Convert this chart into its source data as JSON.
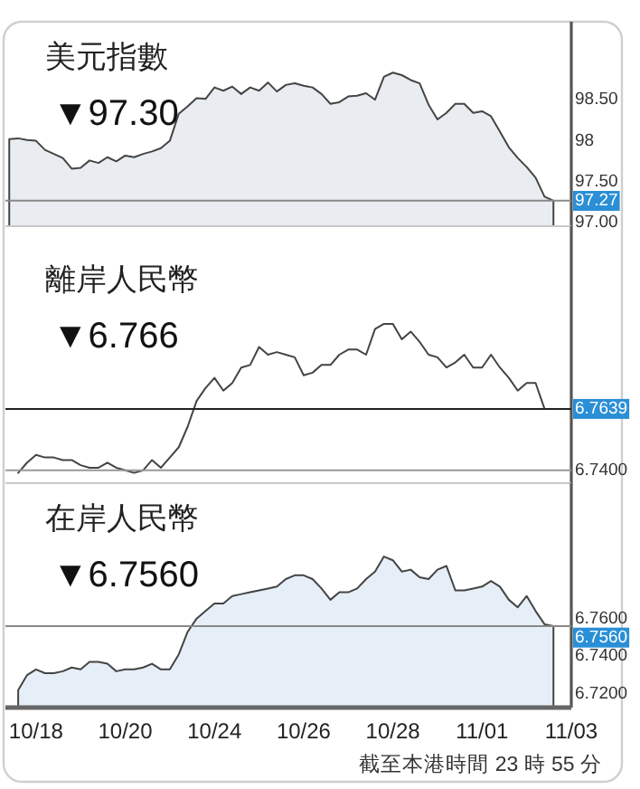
{
  "chart_data": [
    {
      "type": "area",
      "title": "美元指數",
      "subtitle": "▼97.30",
      "categories": [
        null,
        null,
        null,
        null,
        null,
        null,
        null,
        null,
        null,
        null,
        null,
        null,
        null,
        null,
        null,
        null,
        null,
        null,
        null,
        null,
        null,
        null,
        null,
        null,
        null,
        null,
        null,
        null,
        null,
        null,
        null,
        null,
        null,
        null,
        null,
        null,
        null,
        null,
        null,
        null,
        null,
        null,
        null,
        null,
        null,
        null,
        null,
        null,
        null,
        null,
        null,
        null,
        null,
        null,
        null,
        null,
        null,
        null,
        null,
        null,
        null,
        null,
        null,
        null
      ],
      "ylim": [
        96.96,
        99.45
      ],
      "yticks": [
        {
          "value": 97,
          "label": "97.00"
        },
        {
          "value": 97.5,
          "label": "97.50"
        },
        98,
        {
          "value": 98.5,
          "label": "98.50"
        }
      ],
      "ref_lines": [
        {
          "axis": "y",
          "value": 97.27,
          "label": "97.27",
          "color": "#888888"
        }
      ],
      "series": [
        {
          "color": "#e9edf2",
          "values": [
            98.02,
            98.03,
            98.01,
            98.0,
            97.89,
            97.84,
            97.79,
            97.66,
            97.67,
            97.76,
            97.73,
            97.8,
            97.75,
            97.82,
            97.8,
            97.84,
            97.87,
            97.91,
            98.0,
            98.33,
            98.42,
            98.52,
            98.51,
            98.65,
            98.61,
            98.66,
            98.57,
            98.65,
            98.61,
            98.71,
            98.6,
            98.68,
            98.7,
            98.67,
            98.65,
            98.57,
            98.45,
            98.47,
            98.54,
            98.55,
            98.58,
            98.5,
            98.78,
            98.83,
            98.8,
            98.74,
            98.7,
            98.44,
            98.26,
            98.34,
            98.45,
            98.45,
            98.34,
            98.36,
            98.3,
            98.11,
            97.92,
            97.79,
            97.68,
            97.55,
            97.32,
            97.27,
            null,
            null
          ]
        }
      ]
    },
    {
      "type": "line",
      "title": "離岸人民幣",
      "subtitle": "▼6.766",
      "categories": [
        null,
        null,
        null,
        null,
        null,
        null,
        null,
        null,
        null,
        null,
        null,
        null,
        null,
        null,
        null,
        null,
        null,
        null,
        null,
        null,
        null,
        null,
        null,
        null,
        null,
        null,
        null,
        null,
        null,
        null,
        null,
        null,
        null,
        null,
        null,
        null,
        null,
        null,
        null,
        null,
        null,
        null,
        null,
        null,
        null,
        null,
        null,
        null,
        null,
        null,
        null,
        null,
        null,
        null,
        null,
        null,
        null,
        null,
        null,
        null,
        null,
        null,
        null,
        null
      ],
      "ylim": [
        6.735,
        6.835
      ],
      "yticks": [
        {
          "value": 6.74,
          "label": "6.7400"
        },
        {
          "value": 6.7639,
          "label": "6.7639"
        }
      ],
      "ref_lines": [
        {
          "axis": "y",
          "value": 6.74,
          "color": "#999999"
        },
        {
          "axis": "y",
          "value": 6.7639,
          "color": "#222222"
        }
      ],
      "series": [
        {
          "color": "#444444",
          "values": [
            null,
            6.739,
            6.743,
            6.746,
            6.745,
            6.745,
            6.744,
            6.744,
            6.742,
            6.741,
            6.741,
            6.743,
            6.741,
            6.74,
            6.739,
            6.74,
            6.744,
            6.741,
            6.745,
            6.749,
            6.757,
            6.767,
            6.772,
            6.776,
            6.771,
            6.774,
            6.78,
            6.781,
            6.788,
            6.785,
            6.786,
            6.785,
            6.784,
            6.777,
            6.778,
            6.781,
            6.781,
            6.785,
            6.787,
            6.787,
            6.785,
            6.795,
            6.797,
            6.797,
            6.791,
            6.794,
            6.79,
            6.785,
            6.784,
            6.78,
            6.782,
            6.785,
            6.78,
            6.78,
            6.785,
            6.78,
            6.776,
            6.771,
            6.774,
            6.774,
            6.7639,
            null,
            null,
            null
          ]
        }
      ]
    },
    {
      "type": "area",
      "title": "在岸人民幣",
      "subtitle": "▼6.7560",
      "categories": [
        null,
        null,
        null,
        "10/18",
        null,
        null,
        null,
        null,
        null,
        null,
        null,
        null,
        null,
        "10/20",
        null,
        null,
        null,
        null,
        null,
        null,
        null,
        null,
        null,
        "10/24",
        null,
        null,
        null,
        null,
        null,
        null,
        null,
        null,
        null,
        "10/26",
        null,
        null,
        null,
        null,
        null,
        null,
        null,
        null,
        null,
        "10/28",
        null,
        null,
        null,
        null,
        null,
        null,
        null,
        null,
        null,
        "11/01",
        null,
        null,
        null,
        null,
        null,
        null,
        null,
        null,
        null,
        "11/03"
      ],
      "ylim": [
        6.7127,
        6.832
      ],
      "yticks": [
        {
          "value": 6.72,
          "label": "6.7200"
        },
        {
          "value": 6.74,
          "label": "6.7400"
        },
        {
          "value": 6.76,
          "label": "6.7600"
        }
      ],
      "ref_lines": [
        {
          "axis": "y",
          "value": 6.756,
          "label": "6.7560",
          "color": "#888888"
        }
      ],
      "annotations": [
        "截至本港時間 23 時 55 分"
      ],
      "series": [
        {
          "color": "#e6eef7",
          "values": [
            null,
            6.722,
            6.73,
            6.733,
            6.731,
            6.731,
            6.732,
            6.734,
            6.733,
            6.737,
            6.737,
            6.736,
            6.732,
            6.733,
            6.733,
            6.734,
            6.736,
            6.733,
            6.733,
            6.741,
            6.753,
            6.76,
            6.764,
            6.768,
            6.768,
            6.772,
            6.773,
            6.774,
            6.775,
            6.776,
            6.777,
            6.781,
            6.783,
            6.783,
            6.781,
            6.776,
            6.77,
            6.774,
            6.774,
            6.776,
            6.781,
            6.785,
            6.793,
            6.791,
            6.785,
            6.786,
            6.782,
            6.781,
            6.786,
            6.788,
            6.775,
            6.775,
            6.776,
            6.777,
            6.78,
            6.777,
            6.77,
            6.766,
            6.772,
            6.764,
            6.757,
            6.756,
            null,
            null
          ]
        }
      ]
    }
  ]
}
